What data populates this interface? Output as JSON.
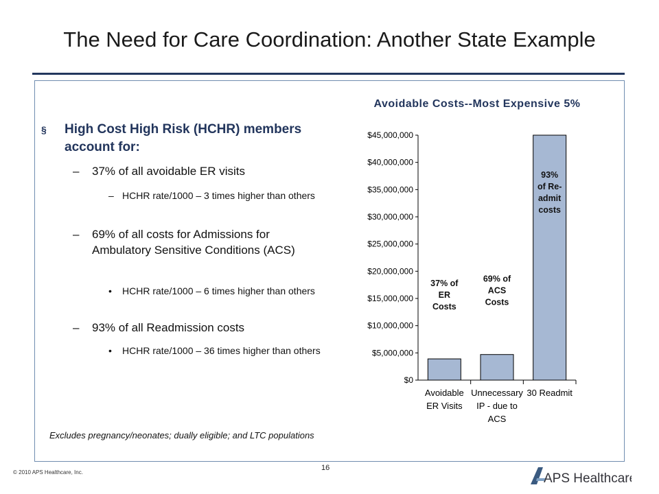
{
  "slide": {
    "title": "The Need for Care Coordination: Another State Example",
    "page_number": "16",
    "copyright": "© 2010 APS Healthcare, Inc.",
    "logo_text": "APS Healthcare"
  },
  "bullets": {
    "lead_marker": "§",
    "lead": "High Cost High Risk (HCHR) members account for:",
    "items": [
      {
        "marker": "–",
        "text": "37% of all avoidable ER visits"
      },
      {
        "marker": "–",
        "text": "HCHR rate/1000 – 3 times higher than others"
      },
      {
        "marker": "–",
        "text": "69% of all costs for Admissions for Ambulatory Sensitive Conditions (ACS)"
      },
      {
        "marker": "•",
        "text": "HCHR rate/1000 – 6 times higher than others"
      },
      {
        "marker": "–",
        "text": "93% of all Readmission costs"
      },
      {
        "marker": "•",
        "text": "HCHR rate/1000 – 36 times higher than others"
      }
    ],
    "footnote": "Excludes pregnancy/neonates; dually eligible; and LTC populations"
  },
  "chart_data": {
    "type": "bar",
    "title": "Avoidable Costs--Most Expensive 5%",
    "xlabel": "",
    "ylabel": "",
    "categories": [
      "Avoidable ER Visits",
      "Unnecessary IP - due to ACS",
      "30 Readmit"
    ],
    "category_lines": [
      [
        "Avoidable",
        "ER Visits"
      ],
      [
        "Unnecessary",
        "IP - due to",
        "ACS"
      ],
      [
        "30 Readmit"
      ]
    ],
    "values": [
      3900000,
      4700000,
      45000000
    ],
    "bar_labels": [
      [
        "37% of",
        "ER",
        "Costs"
      ],
      [
        "69% of",
        "ACS",
        "Costs"
      ],
      [
        "93%",
        "of Re-",
        "admit",
        "costs"
      ]
    ],
    "ylim": [
      0,
      45000000
    ],
    "yticks": [
      0,
      5000000,
      10000000,
      15000000,
      20000000,
      25000000,
      30000000,
      35000000,
      40000000,
      45000000
    ],
    "ytick_labels": [
      "$0",
      "$5,000,000",
      "$10,000,000",
      "$15,000,000",
      "$20,000,000",
      "$25,000,000",
      "$30,000,000",
      "$35,000,000",
      "$40,000,000",
      "$45,000,000"
    ],
    "grid": false,
    "legend": "none",
    "bar_color": "#a6b8d3"
  }
}
